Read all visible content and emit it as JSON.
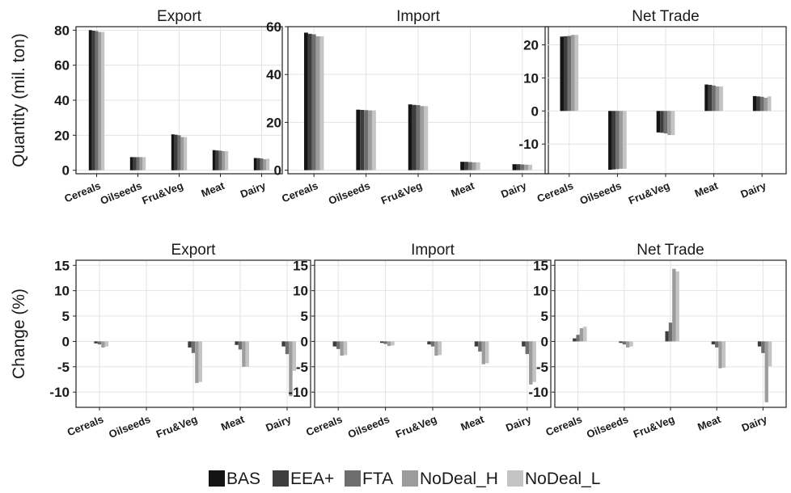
{
  "chart_data": {
    "type": "bar",
    "categories": [
      "Cereals",
      "Oilseeds",
      "Fru&Veg",
      "Meat",
      "Dairy"
    ],
    "series_names": [
      "BAS",
      "EEA+",
      "FTA",
      "NoDeal_H",
      "NoDeal_L"
    ],
    "colors": [
      "#141414",
      "#3d3d3d",
      "#6e6e6e",
      "#9c9c9c",
      "#c4c4c4"
    ],
    "grid": true,
    "legend_position": "bottom",
    "row_labels": [
      "Quantity (mil. ton)",
      "Change (%)"
    ],
    "panels": [
      {
        "row": 0,
        "title": "Export",
        "ylim": [
          -2,
          82
        ],
        "yticks": [
          0,
          20,
          40,
          60,
          80
        ],
        "series": [
          {
            "name": "BAS",
            "values": [
              80.0,
              7.5,
              20.5,
              11.5,
              7.0
            ]
          },
          {
            "name": "EEA+",
            "values": [
              79.7,
              7.5,
              20.3,
              11.3,
              6.9
            ]
          },
          {
            "name": "FTA",
            "values": [
              79.5,
              7.5,
              20.0,
              11.2,
              6.8
            ]
          },
          {
            "name": "NoDeal_H",
            "values": [
              79.0,
              7.5,
              19.0,
              10.9,
              6.3
            ]
          },
          {
            "name": "NoDeal_L",
            "values": [
              79.0,
              7.5,
              19.0,
              10.9,
              6.6
            ]
          }
        ]
      },
      {
        "row": 0,
        "title": "Import",
        "ylim": [
          -1.5,
          60
        ],
        "yticks": [
          0,
          20,
          40,
          60
        ],
        "series": [
          {
            "name": "BAS",
            "values": [
              57.5,
              25.3,
              27.5,
              3.5,
              2.5
            ]
          },
          {
            "name": "EEA+",
            "values": [
              57.0,
              25.2,
              27.3,
              3.5,
              2.5
            ]
          },
          {
            "name": "FTA",
            "values": [
              56.8,
              25.1,
              27.2,
              3.4,
              2.4
            ]
          },
          {
            "name": "NoDeal_H",
            "values": [
              56.0,
              25.0,
              26.8,
              3.3,
              2.3
            ]
          },
          {
            "name": "NoDeal_L",
            "values": [
              56.0,
              25.0,
              26.8,
              3.3,
              2.3
            ]
          }
        ]
      },
      {
        "row": 0,
        "title": "Net Trade",
        "ylim": [
          -19,
          25.5
        ],
        "yticks": [
          -10,
          0,
          10,
          20
        ],
        "series": [
          {
            "name": "BAS",
            "values": [
              22.5,
              -17.8,
              -6.5,
              8.0,
              4.5
            ]
          },
          {
            "name": "EEA+",
            "values": [
              22.6,
              -17.7,
              -6.6,
              7.9,
              4.4
            ]
          },
          {
            "name": "FTA",
            "values": [
              22.7,
              -17.6,
              -6.8,
              7.7,
              4.3
            ]
          },
          {
            "name": "NoDeal_H",
            "values": [
              23.0,
              -17.5,
              -7.3,
              7.4,
              4.0
            ]
          },
          {
            "name": "NoDeal_L",
            "values": [
              23.0,
              -17.5,
              -7.3,
              7.4,
              4.4
            ]
          }
        ]
      },
      {
        "row": 1,
        "title": "Export",
        "ylim": [
          -13,
          16
        ],
        "yticks": [
          -10,
          -5,
          0,
          5,
          10,
          15
        ],
        "series": [
          {
            "name": "BAS",
            "values": [
              0.0,
              0.0,
              0.0,
              0.0,
              0.0
            ]
          },
          {
            "name": "EEA+",
            "values": [
              -0.4,
              0.0,
              -1.2,
              -0.7,
              -1.0
            ]
          },
          {
            "name": "FTA",
            "values": [
              -0.6,
              0.0,
              -2.3,
              -1.6,
              -2.5
            ]
          },
          {
            "name": "NoDeal_H",
            "values": [
              -1.2,
              0.0,
              -8.2,
              -5.0,
              -10.8
            ]
          },
          {
            "name": "NoDeal_L",
            "values": [
              -1.0,
              0.0,
              -8.0,
              -5.0,
              -5.8
            ]
          }
        ]
      },
      {
        "row": 1,
        "title": "Import",
        "ylim": [
          -13,
          16
        ],
        "yticks": [
          -10,
          -5,
          0,
          5,
          10,
          15
        ],
        "series": [
          {
            "name": "BAS",
            "values": [
              0.0,
              0.0,
              0.0,
              0.0,
              0.0
            ]
          },
          {
            "name": "EEA+",
            "values": [
              -1.0,
              -0.3,
              -0.6,
              -1.0,
              -1.0
            ]
          },
          {
            "name": "FTA",
            "values": [
              -1.5,
              -0.5,
              -1.0,
              -2.0,
              -2.5
            ]
          },
          {
            "name": "NoDeal_H",
            "values": [
              -2.8,
              -0.9,
              -2.8,
              -4.5,
              -8.5
            ]
          },
          {
            "name": "NoDeal_L",
            "values": [
              -2.7,
              -0.8,
              -2.7,
              -4.3,
              -8.0
            ]
          }
        ]
      },
      {
        "row": 1,
        "title": "Net Trade",
        "ylim": [
          -13,
          16
        ],
        "yticks": [
          -10,
          -5,
          0,
          5,
          10,
          15
        ],
        "series": [
          {
            "name": "BAS",
            "values": [
              0.0,
              0.0,
              0.0,
              0.0,
              0.0
            ]
          },
          {
            "name": "EEA+",
            "values": [
              0.6,
              -0.3,
              2.0,
              -0.6,
              -1.0
            ]
          },
          {
            "name": "FTA",
            "values": [
              1.3,
              -0.6,
              3.7,
              -1.2,
              -2.3
            ]
          },
          {
            "name": "NoDeal_H",
            "values": [
              2.6,
              -1.2,
              14.3,
              -5.3,
              -12.0
            ]
          },
          {
            "name": "NoDeal_L",
            "values": [
              2.9,
              -1.0,
              13.8,
              -5.2,
              -4.9
            ]
          }
        ]
      }
    ]
  }
}
